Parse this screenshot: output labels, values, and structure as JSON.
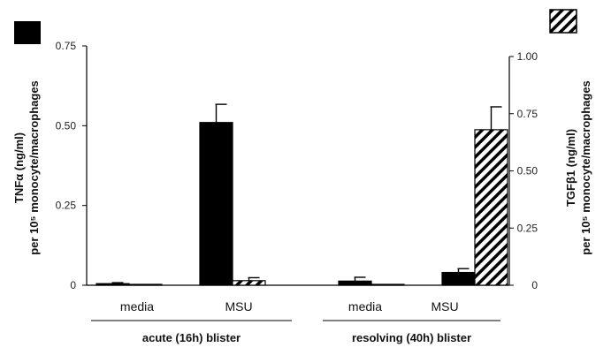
{
  "chart_data": {
    "type": "bar",
    "groups": [
      {
        "label": "acute (16h) blister",
        "categories": [
          "media",
          "MSU"
        ]
      },
      {
        "label": "resolving (40h) blister",
        "categories": [
          "media",
          "MSU"
        ]
      }
    ],
    "series": [
      {
        "name": "TNFα",
        "axis": "left",
        "fill": "solid",
        "color": "#000000",
        "values": [
          0.005,
          0.51,
          0.013,
          0.04
        ],
        "errors": [
          0.003,
          0.057,
          0.012,
          0.012
        ]
      },
      {
        "name": "TGFβ1",
        "axis": "right",
        "fill": "hatched",
        "color": "#000000",
        "values": [
          0.003,
          0.02,
          0.003,
          0.68
        ],
        "errors": [
          0.0,
          0.013,
          0.0,
          0.1
        ]
      }
    ],
    "left_axis": {
      "label_line1": "TNFα (ng/ml)",
      "label_line2": "per 10⁵ monocyte/macrophages",
      "range": [
        0,
        0.75
      ],
      "ticks": [
        "0",
        "0.25",
        "0.50",
        "0.75"
      ],
      "tick_values": [
        0,
        0.25,
        0.5,
        0.75
      ]
    },
    "right_axis": {
      "label_line1": "TGFβ1 (ng/ml)",
      "label_line2": "per 10⁵ monocyte/macrophages",
      "range": [
        0,
        1.0
      ],
      "ticks": [
        "0",
        "0.25",
        "0.50",
        "0.75",
        "1.00"
      ],
      "tick_values": [
        0,
        0.25,
        0.5,
        0.75,
        1.0
      ]
    },
    "legend": "top",
    "grid": false
  }
}
